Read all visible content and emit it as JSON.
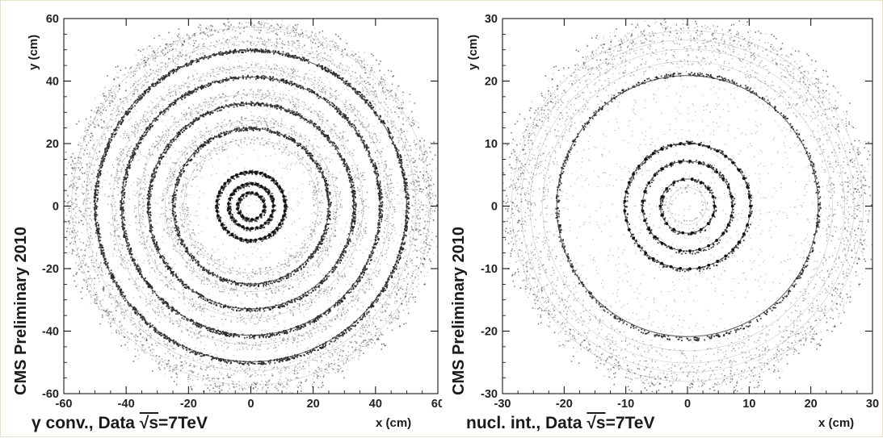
{
  "chart_data": [
    {
      "type": "scatter",
      "description_kind": "2D occupancy map of photon conversion vertices (x-y plane)",
      "xlabel": "x (cm)",
      "ylabel": "y (cm)",
      "xlim": [
        -60,
        60
      ],
      "ylim": [
        -60,
        60
      ],
      "xticks": [
        "-60",
        "-40",
        "-20",
        "0",
        "20",
        "40",
        "60"
      ],
      "yticks": [
        "-60",
        "-40",
        "-20",
        "0",
        "20",
        "40",
        "60"
      ],
      "side_label": "CMS Preliminary 2010",
      "caption_prefix": "γ conv., Data ",
      "caption_sqrt": "√s",
      "caption_suffix": "=7TeV",
      "structures_radius_cm": [
        4.3,
        7.2,
        11.0,
        21.5,
        25.0,
        27.5,
        33.0,
        36.0,
        41.5,
        44.5,
        50.0,
        53.0,
        57.5
      ],
      "dark_rings_radius_cm": [
        4.3,
        7.2,
        11.0,
        25.0,
        33.0,
        41.5,
        50.0
      ],
      "marker_color": "#222222",
      "grid": false
    },
    {
      "type": "scatter",
      "description_kind": "2D occupancy map of nuclear interaction vertices (x-y plane)",
      "xlabel": "x (cm)",
      "ylabel": "y (cm)",
      "xlim": [
        -30,
        30
      ],
      "ylim": [
        -30,
        30
      ],
      "xticks": [
        "-30",
        "-20",
        "-10",
        "0",
        "10",
        "20",
        "30"
      ],
      "yticks": [
        "-30",
        "-20",
        "-10",
        "0",
        "10",
        "20",
        "30"
      ],
      "side_label": "CMS Preliminary 2010",
      "caption_prefix": "nucl. int., Data ",
      "caption_sqrt": "√s",
      "caption_suffix": "=7TeV",
      "structures_radius_cm": [
        3.0,
        4.4,
        7.3,
        10.2,
        21.2,
        23.5,
        25.5,
        27.0,
        28.5
      ],
      "dark_rings_radius_cm": [
        4.4,
        7.3,
        10.2,
        21.2
      ],
      "marker_color": "#222222",
      "grid": false
    }
  ]
}
